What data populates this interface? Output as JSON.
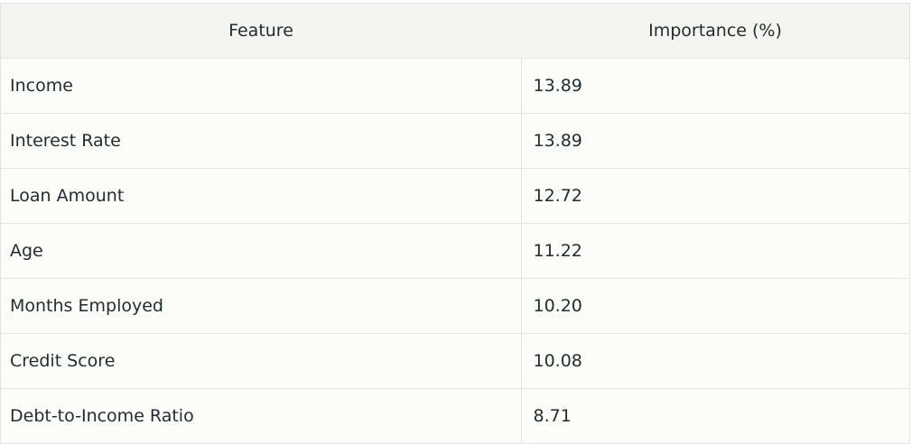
{
  "table": {
    "headers": [
      "Feature",
      "Importance (%)"
    ],
    "rows": [
      [
        "Income",
        "13.89"
      ],
      [
        "Interest Rate",
        "13.89"
      ],
      [
        "Loan Amount",
        "12.72"
      ],
      [
        "Age",
        "11.22"
      ],
      [
        "Months Employed",
        "10.20"
      ],
      [
        "Credit Score",
        "10.08"
      ],
      [
        "Debt-to-Income Ratio",
        "8.71"
      ]
    ]
  }
}
